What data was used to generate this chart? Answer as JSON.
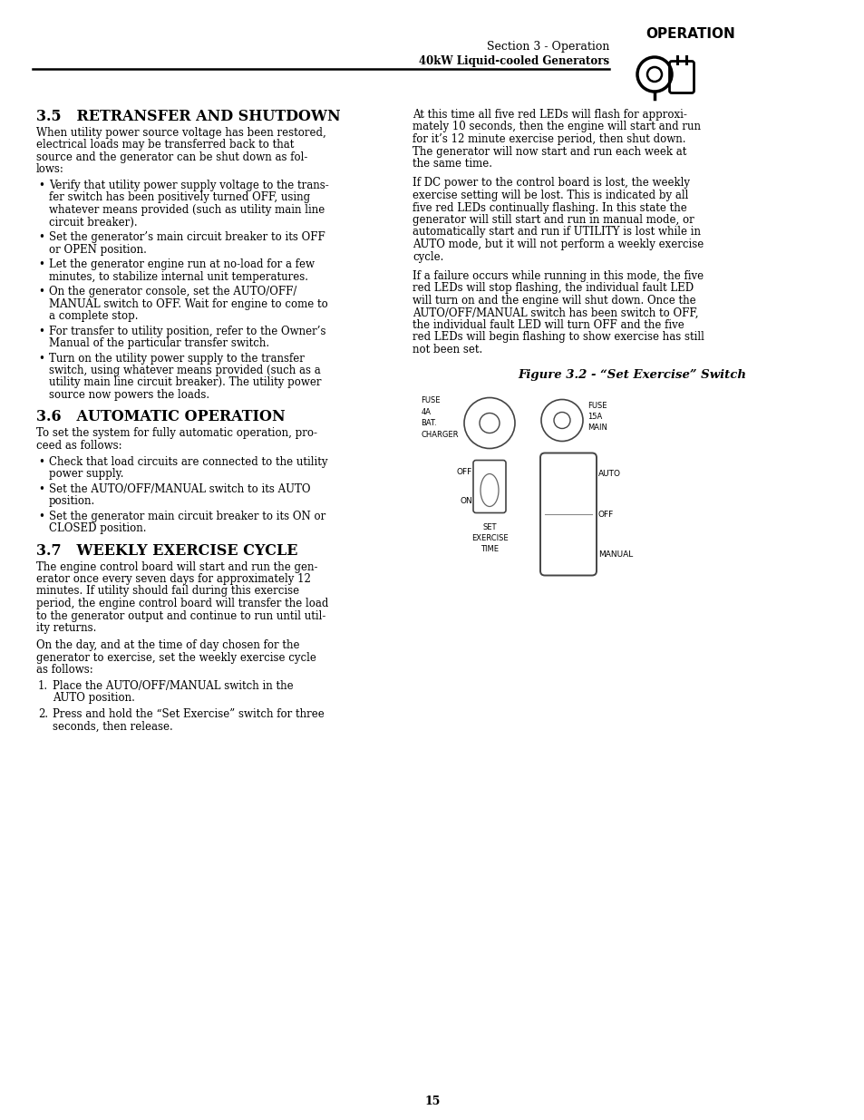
{
  "page_bg": "#ffffff",
  "header_section": "Section 3 - Operation",
  "header_sub": "40kW Liquid-cooled Generators",
  "header_tag": "OPERATION",
  "page_number": "15",
  "section_35_title": "3.5   RETRANSFER AND SHUTDOWN",
  "section_35_body": "When utility power source voltage has been restored,\nelectrical loads may be transferred back to that\nsource and the generator can be shut down as fol-\nlows:",
  "section_35_bullets": [
    "Verify that utility power supply voltage to the trans-\nfer switch has been positively turned OFF, using\nwhatever means provided (such as utility main line\ncircuit breaker).",
    "Set the generator’s main circuit breaker to its OFF\nor OPEN position.",
    "Let the generator engine run at no-load for a few\nminutes, to stabilize internal unit temperatures.",
    "On the generator console, set the AUTO/OFF/\nMANUAL switch to OFF. Wait for engine to come to\na complete stop.",
    "For transfer to utility position, refer to the Owner’s\nManual of the particular transfer switch.",
    "Turn on the utility power supply to the transfer\nswitch, using whatever means provided (such as a\nutility main line circuit breaker). The utility power\nsource now powers the loads."
  ],
  "section_36_title": "3.6   AUTOMATIC OPERATION",
  "section_36_body": "To set the system for fully automatic operation, pro-\nceed as follows:",
  "section_36_bullets": [
    "Check that load circuits are connected to the utility\npower supply.",
    "Set the AUTO/OFF/MANUAL switch to its AUTO\nposition.",
    "Set the generator main circuit breaker to its ON or\nCLOSED position."
  ],
  "section_37_title": "3.7   WEEKLY EXERCISE CYCLE",
  "section_37_body1": "The engine control board will start and run the gen-\nerator once every seven days for approximately 12\nminutes. If utility should fail during this exercise\nperiod, the engine control board will transfer the load\nto the generator output and continue to run until util-\nity returns.",
  "section_37_body2": "On the day, and at the time of day chosen for the\ngenerator to exercise, set the weekly exercise cycle\nas follows:",
  "section_37_numbered": [
    "Place the AUTO/OFF/MANUAL switch in the\nAUTO position.",
    "Press and hold the “Set Exercise” switch for three\nseconds, then release."
  ],
  "right_col_para1": "At this time all five red LEDs will flash for approxi-\nmately 10 seconds, then the engine will start and run\nfor it’s 12 minute exercise period, then shut down.\nThe generator will now start and run each week at\nthe same time.",
  "right_col_para2": "If DC power to the control board is lost, the weekly\nexercise setting will be lost. This is indicated by all\nfive red LEDs continually flashing. In this state the\ngenerator will still start and run in manual mode, or\nautomatically start and run if UTILITY is lost while in\nAUTO mode, but it will not perform a weekly exercise\ncycle.",
  "right_col_para3": "If a failure occurs while running in this mode, the five\nred LEDs will stop flashing, the individual fault LED\nwill turn on and the engine will shut down. Once the\nAUTO/OFF/MANUAL switch has been switch to OFF,\nthe individual fault LED will turn OFF and the five\nred LEDs will begin flashing to show exercise has still\nnot been set.",
  "figure_caption": "Figure 3.2 - “Set Exercise” Switch",
  "label_fuse4a": "FUSE\n4A\nBAT.\nCHARGER",
  "label_fuse15a": "FUSE\n15A\nMAIN",
  "label_off": "OFF",
  "label_on": "ON",
  "label_set_exercise": "SET\nEXERCISE\nTIME",
  "label_auto": "AUTO",
  "label_off2": "OFF",
  "label_manual": "MANUAL"
}
